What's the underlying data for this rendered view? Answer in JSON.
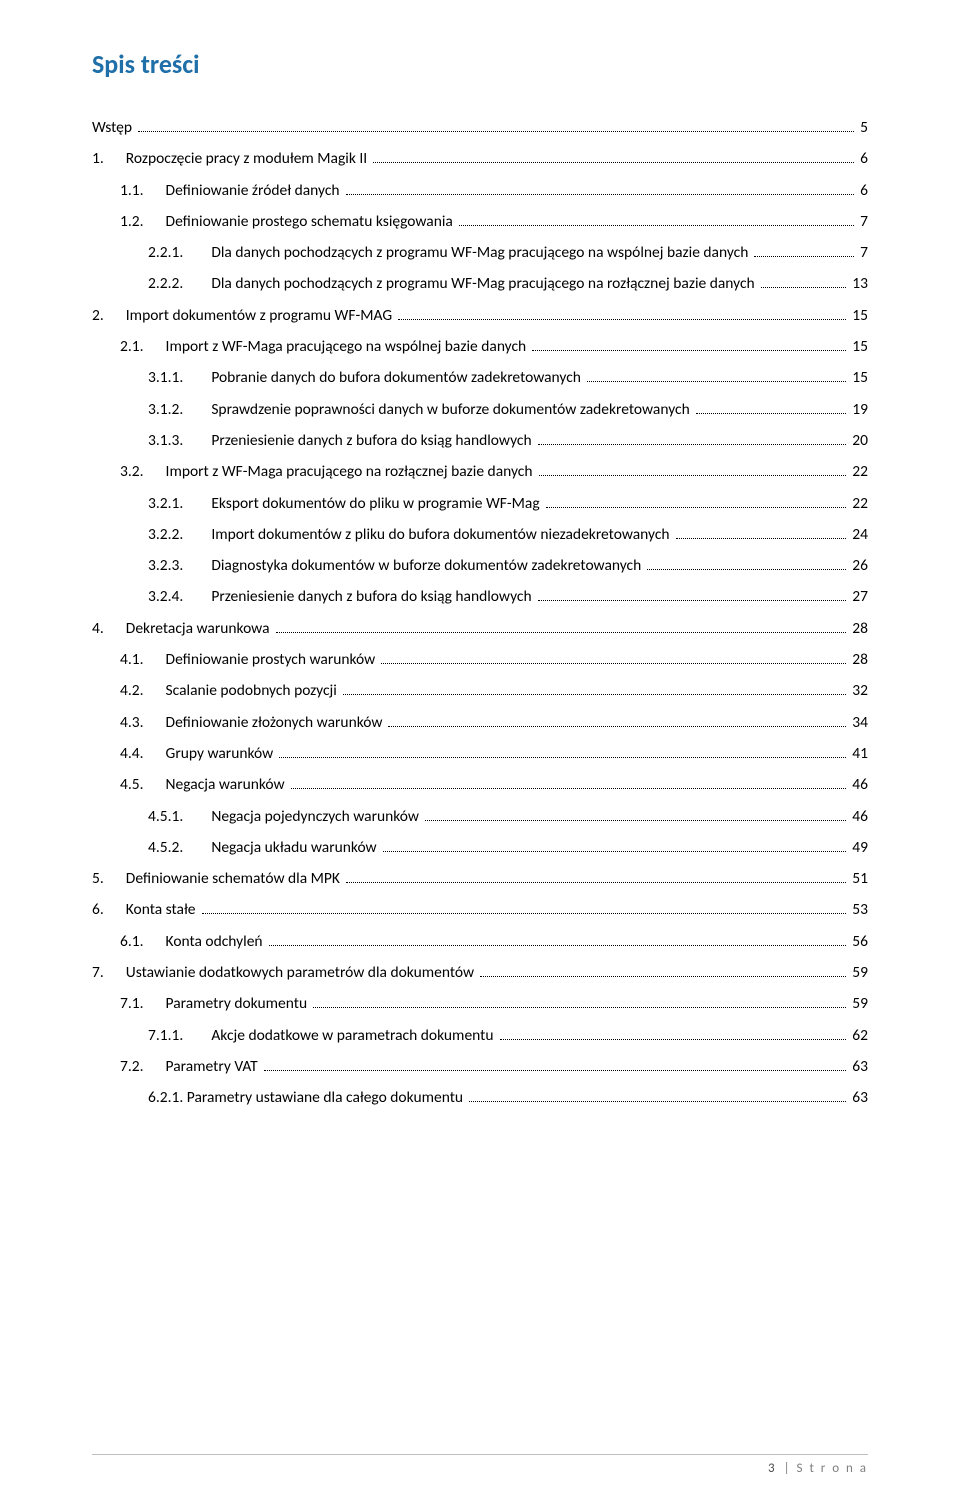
{
  "title": {
    "text": "Spis treści",
    "color": "#1f6fa8"
  },
  "entries": [
    {
      "level": 0,
      "num": "",
      "text": "Wstęp",
      "page": "5"
    },
    {
      "level": 0,
      "num": "1.",
      "text": "Rozpoczęcie pracy z modułem Magik II",
      "page": "6"
    },
    {
      "level": 1,
      "num": "1.1.",
      "text": "Definiowanie źródeł danych",
      "page": "6"
    },
    {
      "level": 1,
      "num": "1.2.",
      "text": "Definiowanie prostego schematu księgowania",
      "page": "7"
    },
    {
      "level": 2,
      "num": "2.2.1.",
      "text": "Dla danych pochodzących z programu WF-Mag  pracującego na wspólnej bazie danych",
      "page": "7"
    },
    {
      "level": 2,
      "num": "2.2.2.",
      "text": "Dla danych pochodzących z programu WF-Mag  pracującego na rozłącznej bazie danych",
      "page": "13"
    },
    {
      "level": 0,
      "num": "2.",
      "text": "Import dokumentów z programu WF-MAG",
      "page": "15"
    },
    {
      "level": 1,
      "num": "2.1.",
      "text": "Import z WF-Maga pracującego  na wspólnej bazie danych",
      "page": "15"
    },
    {
      "level": 2,
      "num": "3.1.1.",
      "text": "Pobranie danych do bufora dokumentów zadekretowanych",
      "page": "15"
    },
    {
      "level": 2,
      "num": "3.1.2.",
      "text": "Sprawdzenie poprawności danych w buforze dokumentów zadekretowanych",
      "page": "19"
    },
    {
      "level": 2,
      "num": "3.1.3.",
      "text": "Przeniesienie danych z bufora do ksiąg handlowych",
      "page": "20"
    },
    {
      "level": 1,
      "num": "3.2.",
      "text": "Import z WF-Maga pracującego  na rozłącznej bazie danych",
      "page": "22"
    },
    {
      "level": 2,
      "num": "3.2.1.",
      "text": "Eksport dokumentów do pliku w programie WF-Mag",
      "page": "22"
    },
    {
      "level": 2,
      "num": "3.2.2.",
      "text": "Import dokumentów z pliku do bufora dokumentów niezadekretowanych",
      "page": "24"
    },
    {
      "level": 2,
      "num": "3.2.3.",
      "text": "Diagnostyka dokumentów w buforze dokumentów zadekretowanych",
      "page": "26"
    },
    {
      "level": 2,
      "num": "3.2.4.",
      "text": "Przeniesienie danych z bufora do ksiąg handlowych",
      "page": "27"
    },
    {
      "level": 0,
      "num": "4.",
      "text": "Dekretacja warunkowa",
      "page": "28"
    },
    {
      "level": 1,
      "num": "4.1.",
      "text": "Definiowanie prostych warunków",
      "page": "28"
    },
    {
      "level": 1,
      "num": "4.2.",
      "text": "Scalanie podobnych pozycji",
      "page": "32"
    },
    {
      "level": 1,
      "num": "4.3.",
      "text": "Definiowanie złożonych warunków",
      "page": "34"
    },
    {
      "level": 1,
      "num": "4.4.",
      "text": "Grupy warunków",
      "page": "41"
    },
    {
      "level": 1,
      "num": "4.5.",
      "text": "Negacja warunków",
      "page": "46"
    },
    {
      "level": 2,
      "num": "4.5.1.",
      "text": "Negacja pojedynczych warunków",
      "page": "46"
    },
    {
      "level": 2,
      "num": "4.5.2.",
      "text": "Negacja układu warunków",
      "page": "49"
    },
    {
      "level": 0,
      "num": "5.",
      "text": "Definiowanie schematów dla MPK",
      "page": "51"
    },
    {
      "level": 0,
      "num": "6.",
      "text": "Konta stałe",
      "page": "53"
    },
    {
      "level": 1,
      "num": "6.1.",
      "text": "Konta odchyleń",
      "page": "56"
    },
    {
      "level": 0,
      "num": "7.",
      "text": "Ustawianie dodatkowych parametrów dla dokumentów",
      "page": "59"
    },
    {
      "level": 1,
      "num": "7.1.",
      "text": "Parametry dokumentu",
      "page": "59"
    },
    {
      "level": 2,
      "num": "7.1.1.",
      "text": "Akcje dodatkowe w parametrach dokumentu",
      "page": "62"
    },
    {
      "level": 1,
      "num": "7.2.",
      "text": "Parametry VAT",
      "page": "63"
    },
    {
      "level": 2,
      "num": "",
      "text": "6.2.1. Parametry ustawiane dla całego dokumentu",
      "page": "63"
    }
  ],
  "footer": {
    "page_number": "3",
    "label": "Strona"
  }
}
